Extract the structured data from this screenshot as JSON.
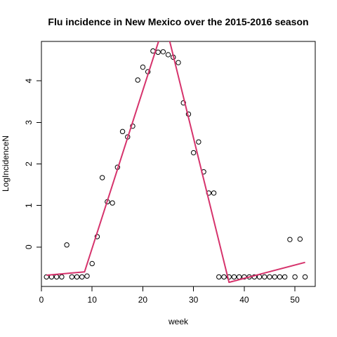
{
  "chart_data": {
    "type": "scatter",
    "title": "Flu incidence in New Mexico over the 2015-2016 season",
    "xlabel": "week",
    "ylabel": "LogIncidenceN",
    "xlim": [
      0,
      54
    ],
    "ylim": [
      -0.95,
      4.95
    ],
    "x_ticks": [
      0,
      10,
      20,
      30,
      40,
      50
    ],
    "y_ticks": [
      0,
      1,
      2,
      3,
      4
    ],
    "grid": false,
    "legend": "none",
    "colors": {
      "points": "#000000",
      "fit_line": "#d6336c",
      "background": "#ffffff"
    },
    "series": [
      {
        "kind": "points",
        "x": [
          1,
          2,
          3,
          4,
          5,
          6,
          7,
          8,
          9,
          10,
          11,
          12,
          13,
          14,
          15,
          16,
          17,
          18,
          19,
          20,
          21,
          22,
          23,
          24,
          25,
          26,
          27,
          28,
          29,
          30,
          31,
          32,
          33,
          34,
          35,
          36,
          37,
          38,
          39,
          40,
          41,
          42,
          43,
          44,
          45,
          46,
          47,
          48,
          49,
          50,
          51,
          52
        ],
        "y": [
          -0.72,
          -0.72,
          -0.72,
          -0.72,
          0.05,
          -0.72,
          -0.72,
          -0.72,
          -0.7,
          -0.4,
          0.25,
          1.67,
          1.09,
          1.06,
          1.92,
          2.78,
          2.65,
          2.91,
          4.02,
          4.33,
          4.22,
          4.72,
          4.69,
          4.7,
          4.63,
          4.57,
          4.44,
          3.47,
          3.2,
          2.27,
          2.53,
          1.81,
          1.3,
          1.3,
          -0.72,
          -0.72,
          -0.72,
          -0.72,
          -0.72,
          -0.72,
          -0.72,
          -0.72,
          -0.72,
          -0.72,
          -0.72,
          -0.72,
          -0.72,
          -0.72,
          0.18,
          -0.72,
          0.19,
          -0.72
        ]
      },
      {
        "kind": "fit-line",
        "x": [
          1,
          8.5,
          23.5,
          25,
          37,
          52
        ],
        "y": [
          -0.68,
          -0.6,
          5.1,
          5.1,
          -0.85,
          -0.37
        ]
      }
    ]
  }
}
